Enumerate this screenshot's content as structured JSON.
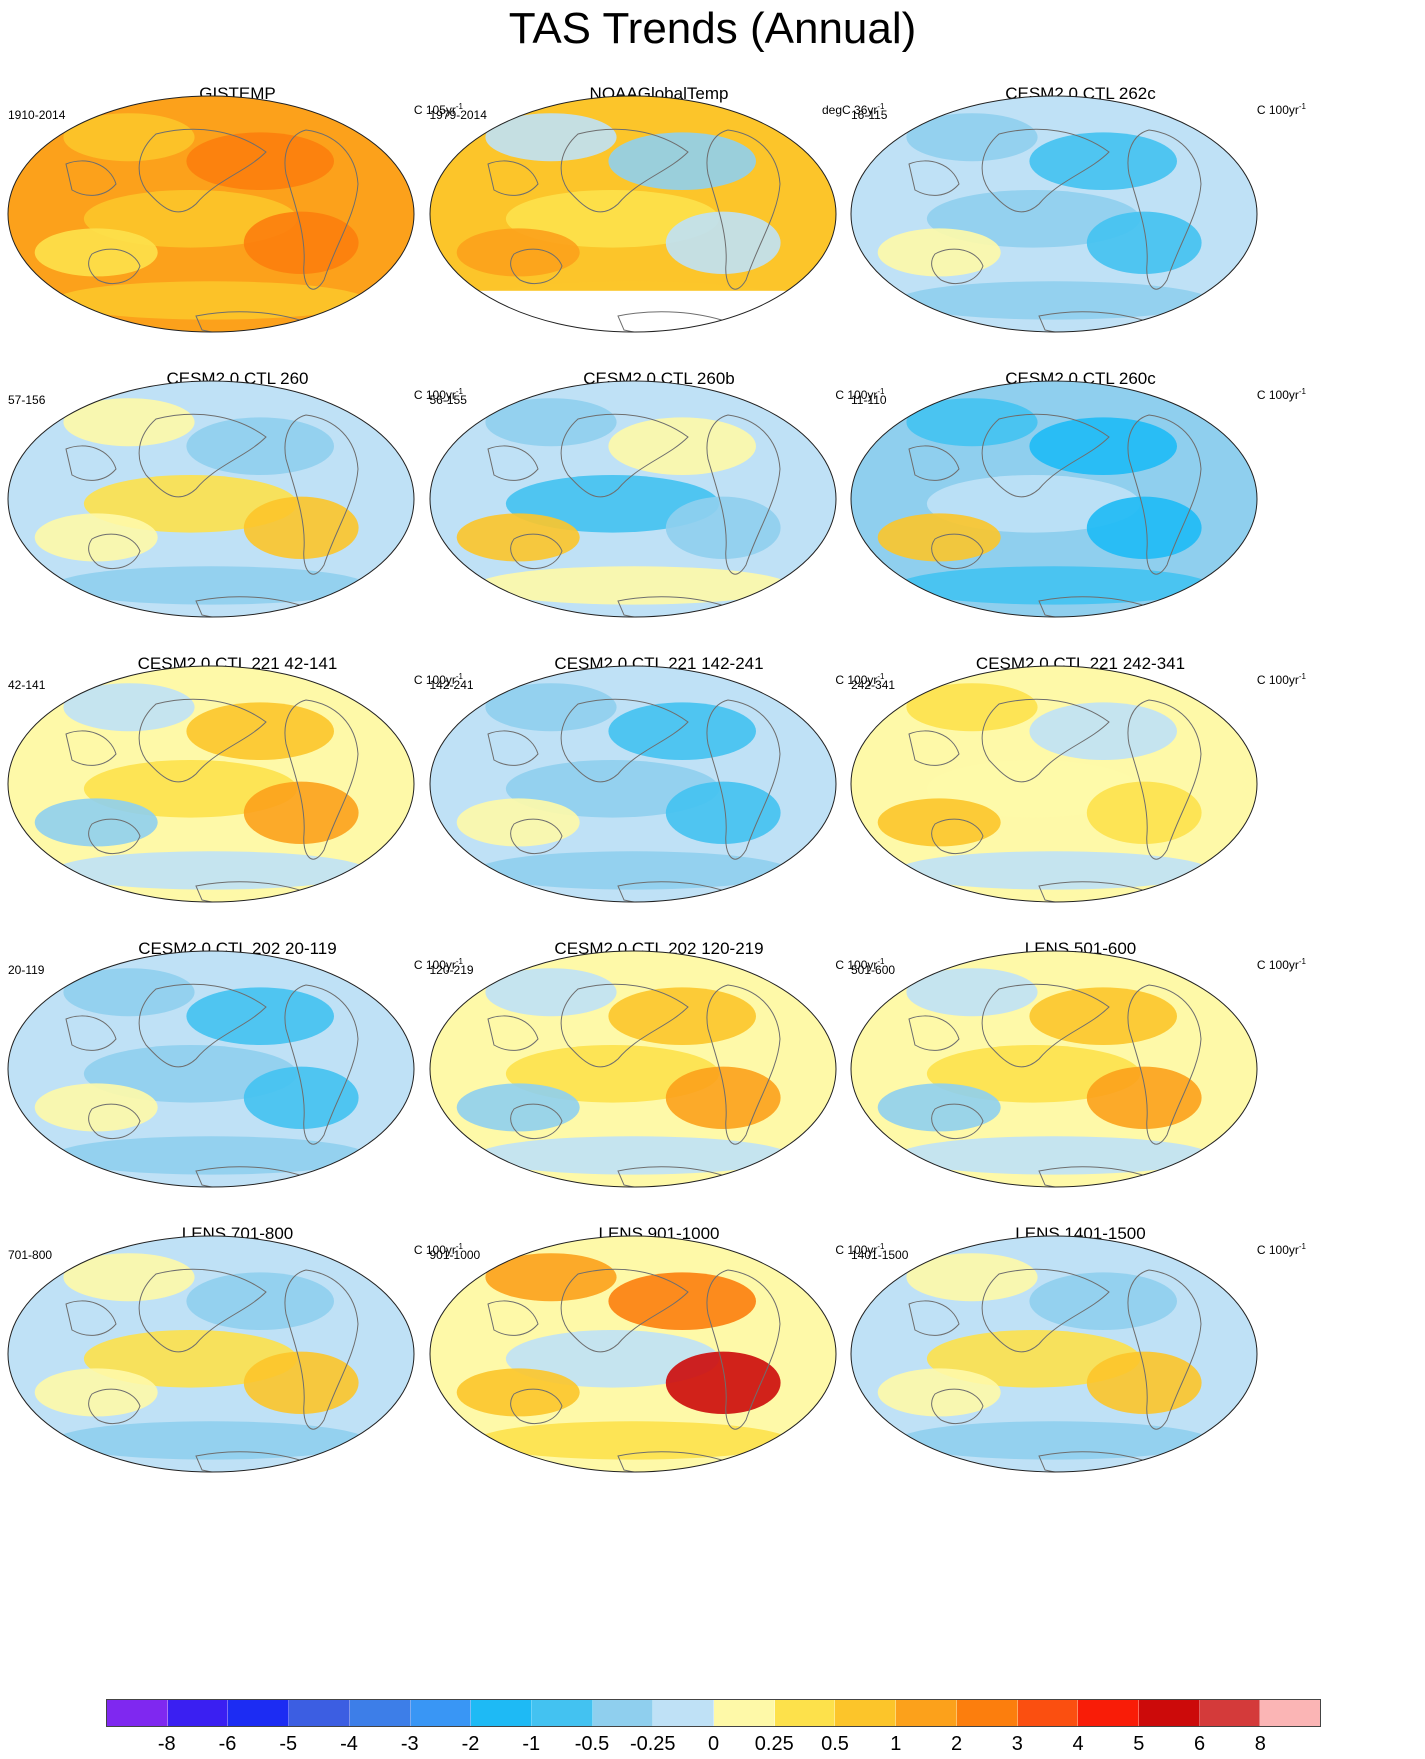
{
  "title": "TAS Trends (Annual)",
  "panels": [
    {
      "title": "GISTEMP",
      "period": "1910-2014",
      "units_base": "C 105yr",
      "units_exp": "-1",
      "style": "warm"
    },
    {
      "title": "NOAAGlobalTemp",
      "period": "1979-2014",
      "units_base": "degC 36yr",
      "units_exp": "-1",
      "style": "noaa"
    },
    {
      "title": "CESM2.0 CTL 262c",
      "period": "16-115",
      "units_base": "C 100yr",
      "units_exp": "-1",
      "style": "cool"
    },
    {
      "title": "CESM2.0 CTL 260",
      "period": "57-156",
      "units_base": "C 100yr",
      "units_exp": "-1",
      "style": "mixed"
    },
    {
      "title": "CESM2.0 CTL 260b",
      "period": "56-155",
      "units_base": "C 100yr",
      "units_exp": "-1",
      "style": "mixedcool"
    },
    {
      "title": "CESM2.0 CTL 260c",
      "period": "11-110",
      "units_base": "C 100yr",
      "units_exp": "-1",
      "style": "cold"
    },
    {
      "title": "CESM2.0 CTL 221 42-141",
      "period": "42-141",
      "units_base": "C 100yr",
      "units_exp": "-1",
      "style": "mixedwarm"
    },
    {
      "title": "CESM2.0 CTL 221 142-241",
      "period": "142-241",
      "units_base": "C 100yr",
      "units_exp": "-1",
      "style": "cool"
    },
    {
      "title": "CESM2.0 CTL 221 242-341",
      "period": "242-341",
      "units_base": "C 100yr",
      "units_exp": "-1",
      "style": "yellow"
    },
    {
      "title": "CESM2.0 CTL 202 20-119",
      "period": "20-119",
      "units_base": "C 100yr",
      "units_exp": "-1",
      "style": "cool"
    },
    {
      "title": "CESM2.0 CTL 202 120-219",
      "period": "120-219",
      "units_base": "C 100yr",
      "units_exp": "-1",
      "style": "mixedwarm"
    },
    {
      "title": "LENS 501-600",
      "period": "501-600",
      "units_base": "C 100yr",
      "units_exp": "-1",
      "style": "mixedwarm"
    },
    {
      "title": "LENS 701-800",
      "period": "701-800",
      "units_base": "C 100yr",
      "units_exp": "-1",
      "style": "mixed"
    },
    {
      "title": "LENS 901-1000",
      "period": "901-1000",
      "units_base": "C 100yr",
      "units_exp": "-1",
      "style": "yellowhot"
    },
    {
      "title": "LENS 1401-1500",
      "period": "1401-1500",
      "units_base": "C 100yr",
      "units_exp": "-1",
      "style": "mixed"
    }
  ],
  "colorbar": {
    "colors": [
      "#7f28f0",
      "#3a1ff2",
      "#1c2cf3",
      "#3c5ee2",
      "#3d7ee8",
      "#3996f5",
      "#1ebaf5",
      "#43c2f1",
      "#8fcfee",
      "#bfe1f6",
      "#fef9a8",
      "#fde14b",
      "#fcc52a",
      "#fca11b",
      "#fc7e0d",
      "#fb4f10",
      "#f91c07",
      "#cc0a0a",
      "#d43a3a",
      "#fbb5b5"
    ],
    "labels": [
      "-8",
      "-6",
      "-5",
      "-4",
      "-3",
      "-2",
      "-1",
      "-0.5",
      "-0.25",
      "0",
      "0.25",
      "0.5",
      "1",
      "2",
      "3",
      "4",
      "5",
      "6",
      "8"
    ]
  }
}
